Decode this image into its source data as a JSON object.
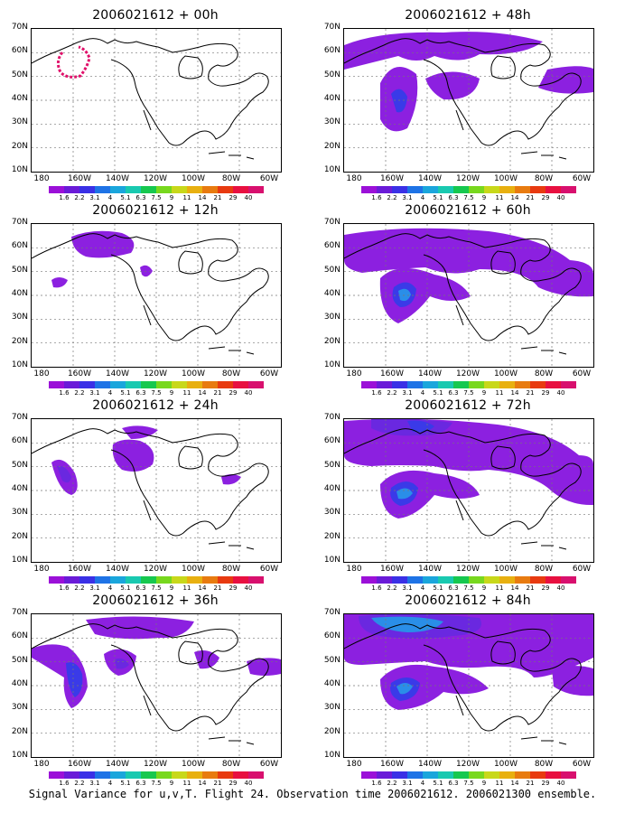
{
  "caption": "Signal Variance for u,v,T. Flight 24. Observation time 2006021612. 2006021300 ensemble.",
  "lat_labels": [
    "70N",
    "60N",
    "50N",
    "40N",
    "30N",
    "20N",
    "10N"
  ],
  "lon_labels": [
    "180",
    "160W",
    "140W",
    "120W",
    "100W",
    "80W",
    "60W"
  ],
  "colorbar": {
    "levels": [
      "1.6",
      "2.2",
      "3.1",
      "4",
      "5.1",
      "6.3",
      "7.5",
      "9",
      "11",
      "14",
      "21",
      "29",
      "40"
    ],
    "colors": [
      "#9b10d8",
      "#6a1bd8",
      "#3a30e6",
      "#1e73e6",
      "#1aa6dc",
      "#19c9b0",
      "#16c84f",
      "#78d81e",
      "#c8d81a",
      "#e8b010",
      "#e87b10",
      "#e83a10",
      "#e81040",
      "#d8106e"
    ]
  },
  "panels": [
    {
      "id": "p00",
      "title": "2006021612 + 00h"
    },
    {
      "id": "p48",
      "title": "2006021612 + 48h"
    },
    {
      "id": "p12",
      "title": "2006021612 + 12h"
    },
    {
      "id": "p60",
      "title": "2006021612 + 60h"
    },
    {
      "id": "p24",
      "title": "2006021612 + 24h"
    },
    {
      "id": "p72",
      "title": "2006021612 + 72h"
    },
    {
      "id": "p36",
      "title": "2006021612 + 36h"
    },
    {
      "id": "p84",
      "title": "2006021612 + 84h"
    }
  ],
  "colors": {
    "purple": "#8c20e0",
    "blue_purple": "#6a28e0",
    "blue": "#3a3ae8",
    "light_blue": "#2a8ee8",
    "cyan": "#1ab8e8",
    "track": "#e0106a"
  }
}
